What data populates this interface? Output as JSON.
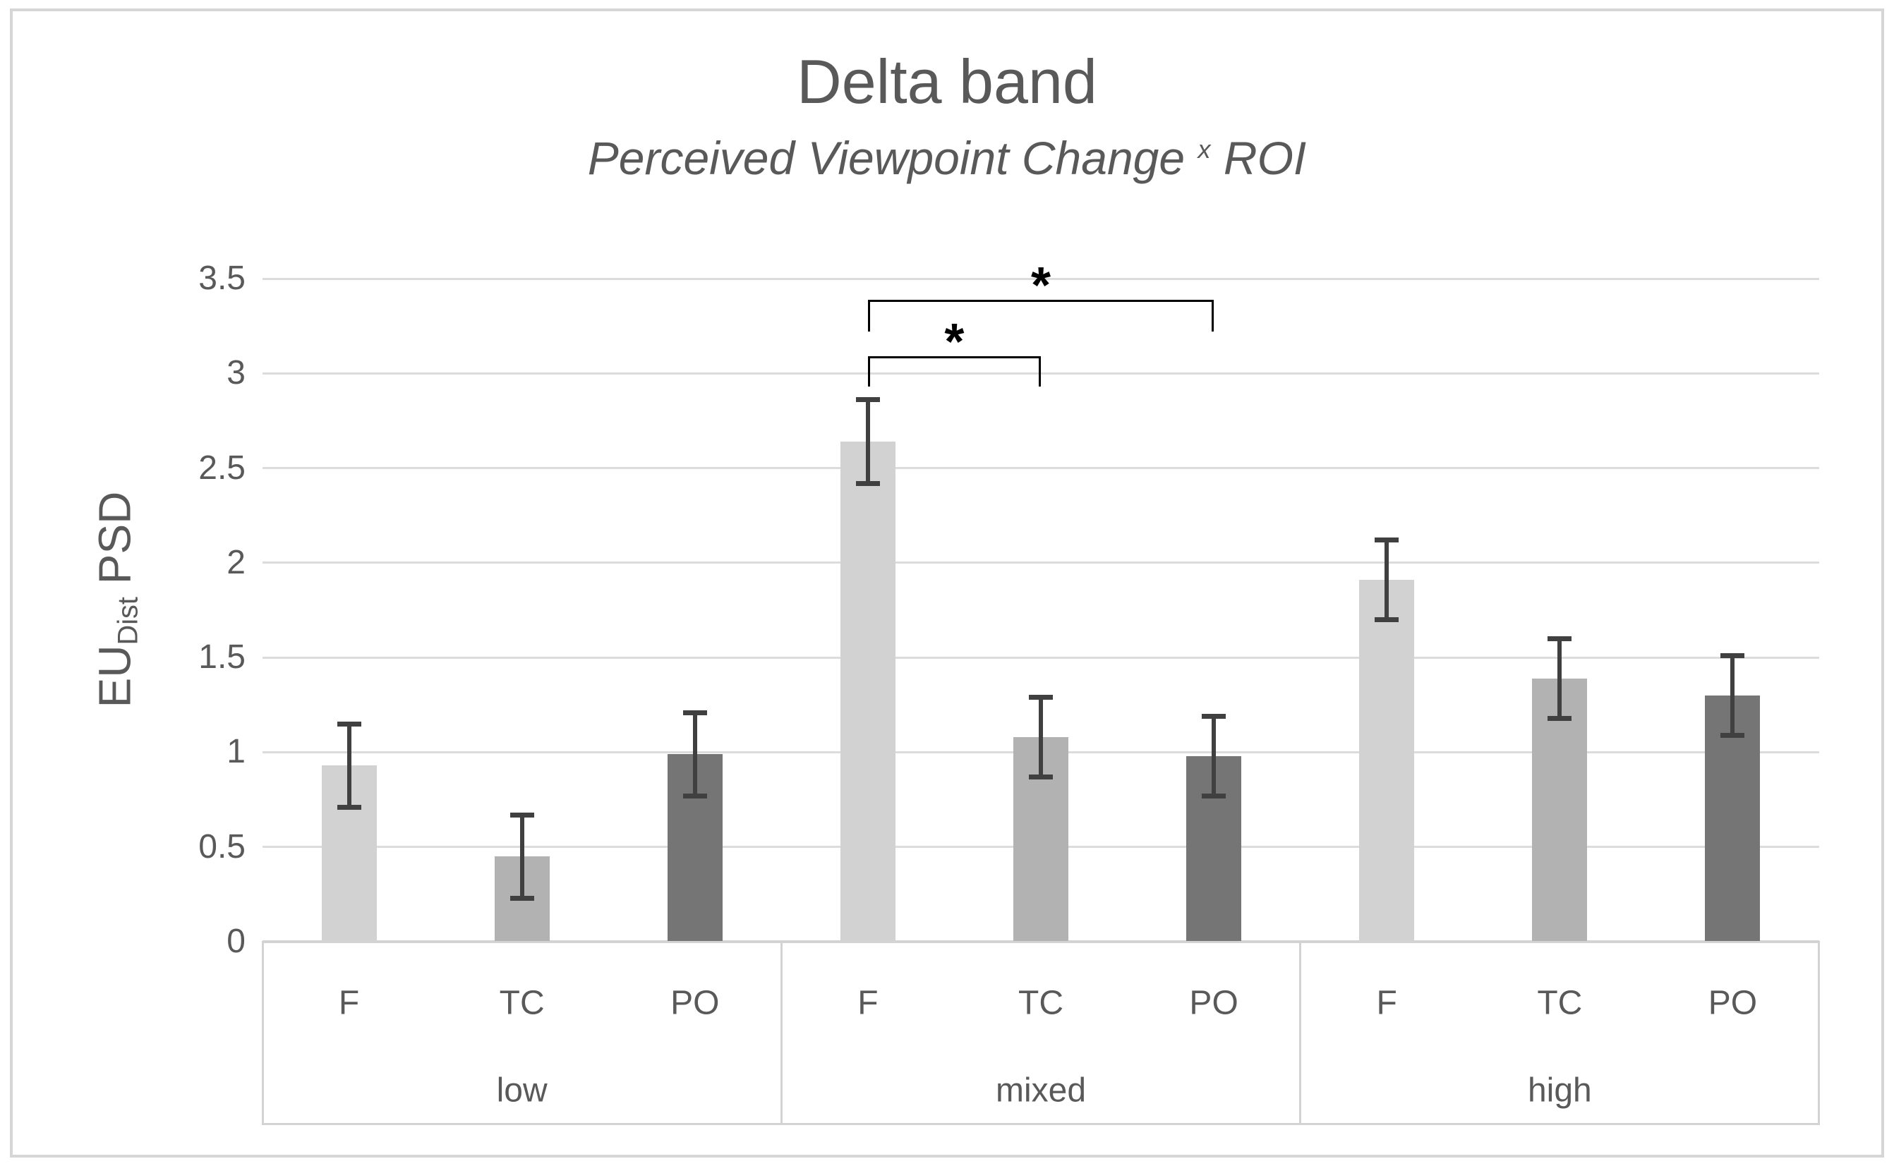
{
  "window": {
    "background_color": "#ffffff",
    "frame_border_color": "#d6d6d6"
  },
  "chart_data": {
    "type": "bar",
    "title": "Delta band",
    "subtitle": {
      "text": "Perceived Viewpoint Change",
      "sup": "x",
      "end": "ROI"
    },
    "ylabel": {
      "main": "EU",
      "sub": "Dist",
      "rest": "PSD"
    },
    "ylim": [
      0,
      3.5
    ],
    "ytick_step": 0.5,
    "yticks": [
      "3.5",
      "3",
      "2.5",
      "2",
      "1.5",
      "1",
      "0.5",
      "0"
    ],
    "grid": true,
    "legend": "none",
    "categories": [
      "low",
      "mixed",
      "high"
    ],
    "bar_labels": [
      "F",
      "TC",
      "PO"
    ],
    "series": [
      {
        "name": "F",
        "color": "#d2d2d2",
        "values": [
          0.93,
          2.64,
          1.91
        ],
        "errors": [
          0.22,
          0.22,
          0.21
        ]
      },
      {
        "name": "TC",
        "color": "#b2b2b2",
        "values": [
          0.45,
          1.08,
          1.39
        ],
        "errors": [
          0.22,
          0.21,
          0.21
        ]
      },
      {
        "name": "PO",
        "color": "#757575",
        "values": [
          0.99,
          0.98,
          1.3
        ],
        "errors": [
          0.22,
          0.21,
          0.21
        ]
      }
    ],
    "significance": [
      {
        "label": "*",
        "group": "mixed",
        "from_series": "F",
        "to_series": "TC",
        "height": 3.09,
        "tick_bottom": 2.93
      },
      {
        "label": "*",
        "group": "mixed",
        "from_series": "F",
        "to_series": "PO",
        "height": 3.39,
        "tick_bottom": 3.22
      }
    ],
    "colors": {
      "text": "#595959",
      "gridline": "#dcdcdc",
      "axis_line": "#d3d3d3",
      "error_bar": "#404040",
      "significance": "#000000"
    }
  }
}
